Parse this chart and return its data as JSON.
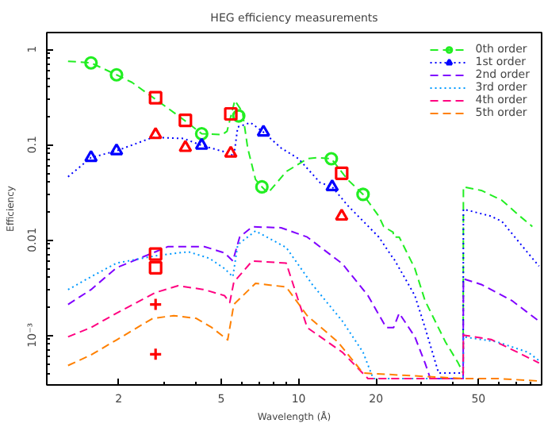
{
  "chart_data": {
    "type": "line",
    "title": "HEG efficiency measurements",
    "xlabel": "Wavelength (Å)",
    "ylabel": "Efficiency",
    "log": "xy",
    "grid": false,
    "legend": "top right",
    "xlim": [
      1.05,
      88
    ],
    "ylim": [
      0.0003,
      1.5
    ],
    "xticks": [
      2,
      5,
      10,
      20,
      50
    ],
    "yticks": [
      {
        "value": 0.001,
        "label": "10⁻³"
      },
      0.01,
      0.1,
      1
    ],
    "series": [
      {
        "name": "0th order",
        "color": "#22ee22",
        "line_style": "dashed",
        "x": [
          1.27,
          1.56,
          1.96,
          2.25,
          3.11,
          3.66,
          4.2,
          5.04,
          5.27,
          5.65,
          6.05,
          6.34,
          6.8,
          7.2,
          7.6,
          8.95,
          10.8,
          11.8,
          13.4,
          15.5,
          17.8,
          20.5,
          21.4,
          23.3,
          23.4,
          24.6,
          28.3,
          31,
          37.2,
          41.7,
          43.6,
          43.7,
          51.3,
          61.7,
          72.5,
          81
        ],
        "values": [
          0.75,
          0.72,
          0.54,
          0.45,
          0.24,
          0.174,
          0.13,
          0.127,
          0.138,
          0.29,
          0.22,
          0.092,
          0.043,
          0.036,
          0.031,
          0.052,
          0.071,
          0.073,
          0.071,
          0.043,
          0.03,
          0.0177,
          0.0138,
          0.012,
          0.0107,
          0.0107,
          0.005,
          0.0023,
          0.00085,
          0.00051,
          0.0004,
          0.036,
          0.033,
          0.026,
          0.0177,
          0.0138
        ]
      },
      {
        "name": "1st order",
        "color": "#0000ff",
        "line_style": "dotted",
        "x": [
          1.27,
          1.56,
          1.96,
          2.71,
          3.57,
          4.2,
          5.4,
          5.6,
          5.8,
          6.5,
          7.3,
          8.55,
          10,
          12.1,
          13.5,
          15.5,
          20.5,
          23.3,
          23.4,
          28.3,
          31,
          35,
          43.6,
          43.7,
          56,
          61.7,
          81,
          86
        ],
        "values": [
          0.046,
          0.073,
          0.086,
          0.119,
          0.116,
          0.098,
          0.081,
          0.075,
          0.153,
          0.17,
          0.135,
          0.092,
          0.071,
          0.04,
          0.036,
          0.023,
          0.0107,
          0.0064,
          0.0064,
          0.0026,
          0.0012,
          0.0004,
          0.0004,
          0.021,
          0.0177,
          0.0156,
          0.0064,
          0.0053
        ]
      },
      {
        "name": "2nd order",
        "color": "#8000ff",
        "line_style": "dashed",
        "x": [
          1.27,
          1.56,
          1.96,
          2.78,
          3.11,
          4.3,
          5.15,
          5.55,
          5.9,
          6.6,
          8.55,
          10.8,
          14.8,
          18.6,
          21.9,
          23.4,
          24.6,
          28.3,
          31,
          32.5,
          43.6,
          43.7,
          51.3,
          67.5,
          86
        ],
        "values": [
          0.0021,
          0.003,
          0.0051,
          0.0075,
          0.0085,
          0.0085,
          0.0073,
          0.006,
          0.0107,
          0.0137,
          0.0134,
          0.0107,
          0.0056,
          0.0026,
          0.0012,
          0.0012,
          0.0017,
          0.00096,
          0.00051,
          0.00035,
          0.00035,
          0.0039,
          0.0034,
          0.0023,
          0.0014
        ]
      },
      {
        "name": "3rd order",
        "color": "#0099ff",
        "line_style": "dotted",
        "x": [
          1.27,
          1.56,
          1.96,
          2.78,
          3.73,
          4.5,
          5.15,
          5.55,
          5.8,
          6.8,
          8.95,
          11.3,
          14.8,
          17.8,
          19.5,
          43.6,
          43.7,
          59,
          78,
          86
        ],
        "values": [
          0.003,
          0.0041,
          0.0057,
          0.0068,
          0.0075,
          0.0064,
          0.005,
          0.0041,
          0.0089,
          0.0124,
          0.0083,
          0.0034,
          0.0014,
          0.00066,
          0.00035,
          0.00035,
          0.00096,
          0.00085,
          0.00066,
          0.00054
        ]
      },
      {
        "name": "4th order",
        "color": "#ff0080",
        "line_style": "dashed",
        "x": [
          1.27,
          1.56,
          1.96,
          2.78,
          3.4,
          4.3,
          5.15,
          5.4,
          5.6,
          6.6,
          8.95,
          10.8,
          14.8,
          18.6,
          43.6,
          43.7,
          56,
          71,
          86
        ],
        "values": [
          0.00096,
          0.0012,
          0.0017,
          0.0028,
          0.0033,
          0.003,
          0.0026,
          0.0022,
          0.0036,
          0.006,
          0.0057,
          0.0012,
          0.00066,
          0.00035,
          0.00035,
          0.001,
          0.0009,
          0.00066,
          0.00051
        ]
      },
      {
        "name": "5th order",
        "color": "#ff8000",
        "line_style": "dashed",
        "x": [
          1.27,
          1.56,
          1.96,
          2.71,
          3.27,
          4.0,
          4.6,
          5.3,
          5.6,
          6.8,
          8.95,
          10.8,
          14.2,
          17.8,
          43.6,
          43.7,
          59,
          86
        ],
        "values": [
          0.00048,
          0.00062,
          0.00089,
          0.0015,
          0.0016,
          0.0015,
          0.0012,
          0.00089,
          0.0021,
          0.0035,
          0.0032,
          0.0016,
          0.00085,
          0.0004,
          0.00035,
          0.00035,
          0.00035,
          0.00033
        ]
      },
      {
        "type": "scatter",
        "color": "#22ee22",
        "marker": "circle",
        "x": [
          1.56,
          1.96,
          4.2,
          5.85,
          7.2,
          13.4,
          17.8
        ],
        "values": [
          0.72,
          0.54,
          0.13,
          0.2,
          0.036,
          0.071,
          0.03
        ]
      },
      {
        "type": "scatter",
        "color": "#0000ff",
        "marker": "triangle",
        "x": [
          1.56,
          1.96,
          4.2,
          7.3,
          13.5
        ],
        "values": [
          0.073,
          0.086,
          0.098,
          0.135,
          0.036
        ]
      },
      {
        "type": "scatter",
        "color": "#ff0000",
        "marker": "square",
        "x": [
          2.78,
          3.63,
          5.45,
          14.7,
          2.78,
          2.78
        ],
        "values": [
          0.31,
          0.18,
          0.21,
          0.05,
          0.0071,
          0.0051
        ]
      },
      {
        "type": "scatter",
        "color": "#ff0000",
        "marker": "triangle",
        "x": [
          2.78,
          3.63,
          5.45,
          14.7
        ],
        "values": [
          0.127,
          0.093,
          0.081,
          0.0177
        ]
      },
      {
        "type": "scatter",
        "color": "#ff0000",
        "marker": "cross",
        "x": [
          2.78,
          2.78
        ],
        "values": [
          0.0021,
          0.00063
        ]
      }
    ]
  }
}
